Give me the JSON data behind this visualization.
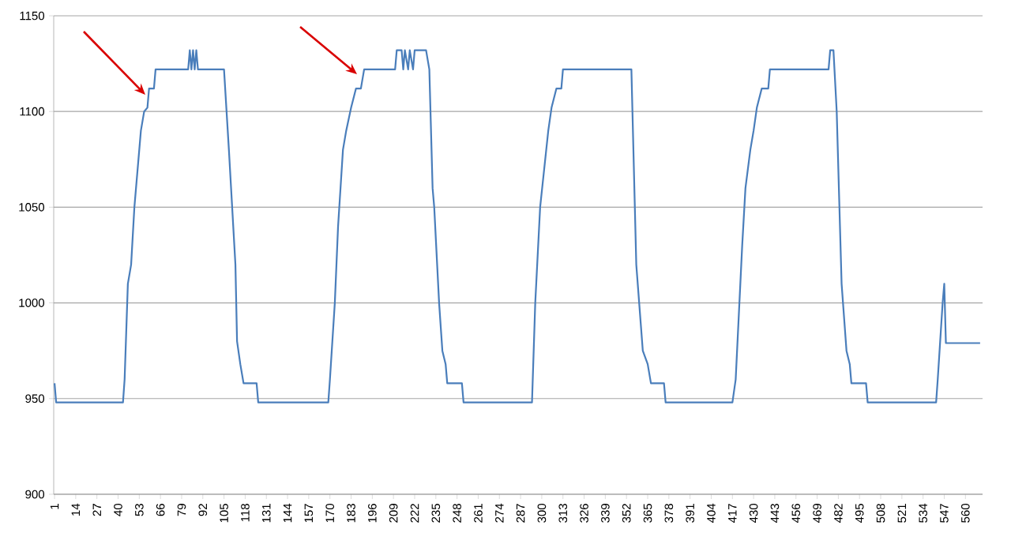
{
  "chart_data": {
    "type": "line",
    "color": "#4a7ebb",
    "grid": "y",
    "x": [
      1,
      2,
      43,
      44,
      46,
      48,
      50,
      53,
      54,
      56,
      58,
      59,
      62,
      63,
      83,
      84,
      85,
      86,
      87,
      88,
      89,
      105,
      108,
      112,
      113,
      115,
      117,
      125,
      126,
      169,
      170,
      173,
      175,
      178,
      180,
      183,
      186,
      189,
      191,
      210,
      211,
      214,
      215,
      216,
      218,
      219,
      221,
      222,
      229,
      231,
      233,
      234,
      237,
      239,
      241,
      242,
      251,
      252,
      294,
      296,
      299,
      304,
      306,
      309,
      312,
      313,
      355,
      358,
      362,
      365,
      367,
      375,
      376,
      417,
      419,
      423,
      425,
      428,
      430,
      432,
      435,
      439,
      440,
      476,
      477,
      479,
      481,
      483,
      484,
      487,
      489,
      490,
      499,
      500,
      542,
      543,
      546,
      547,
      548,
      569
    ],
    "values": [
      958,
      948,
      948,
      960,
      1010,
      1020,
      1050,
      1080,
      1090,
      1100,
      1102,
      1112,
      1112,
      1122,
      1122,
      1132,
      1122,
      1132,
      1122,
      1132,
      1122,
      1122,
      1080,
      1020,
      980,
      968,
      958,
      958,
      948,
      948,
      960,
      1000,
      1040,
      1080,
      1090,
      1102,
      1112,
      1112,
      1122,
      1122,
      1132,
      1132,
      1122,
      1132,
      1122,
      1132,
      1122,
      1132,
      1132,
      1122,
      1060,
      1050,
      1000,
      975,
      968,
      958,
      958,
      948,
      948,
      1000,
      1050,
      1090,
      1102,
      1112,
      1112,
      1122,
      1122,
      1020,
      975,
      968,
      958,
      958,
      948,
      948,
      960,
      1030,
      1060,
      1080,
      1090,
      1102,
      1112,
      1112,
      1122,
      1122,
      1132,
      1132,
      1100,
      1040,
      1010,
      975,
      968,
      958,
      958,
      948,
      948,
      960,
      1000,
      1010,
      979,
      979
    ],
    "xlim": [
      0.5,
      570.5
    ],
    "xticks": [
      1,
      14,
      27,
      40,
      53,
      66,
      79,
      92,
      105,
      118,
      131,
      144,
      157,
      170,
      183,
      196,
      209,
      222,
      235,
      248,
      261,
      274,
      287,
      300,
      313,
      326,
      339,
      352,
      365,
      378,
      391,
      404,
      417,
      430,
      443,
      456,
      469,
      482,
      495,
      508,
      521,
      534,
      547,
      560
    ],
    "ylim": [
      900,
      1150
    ],
    "yticks": [
      900,
      950,
      1000,
      1050,
      1100,
      1150
    ]
  }
}
